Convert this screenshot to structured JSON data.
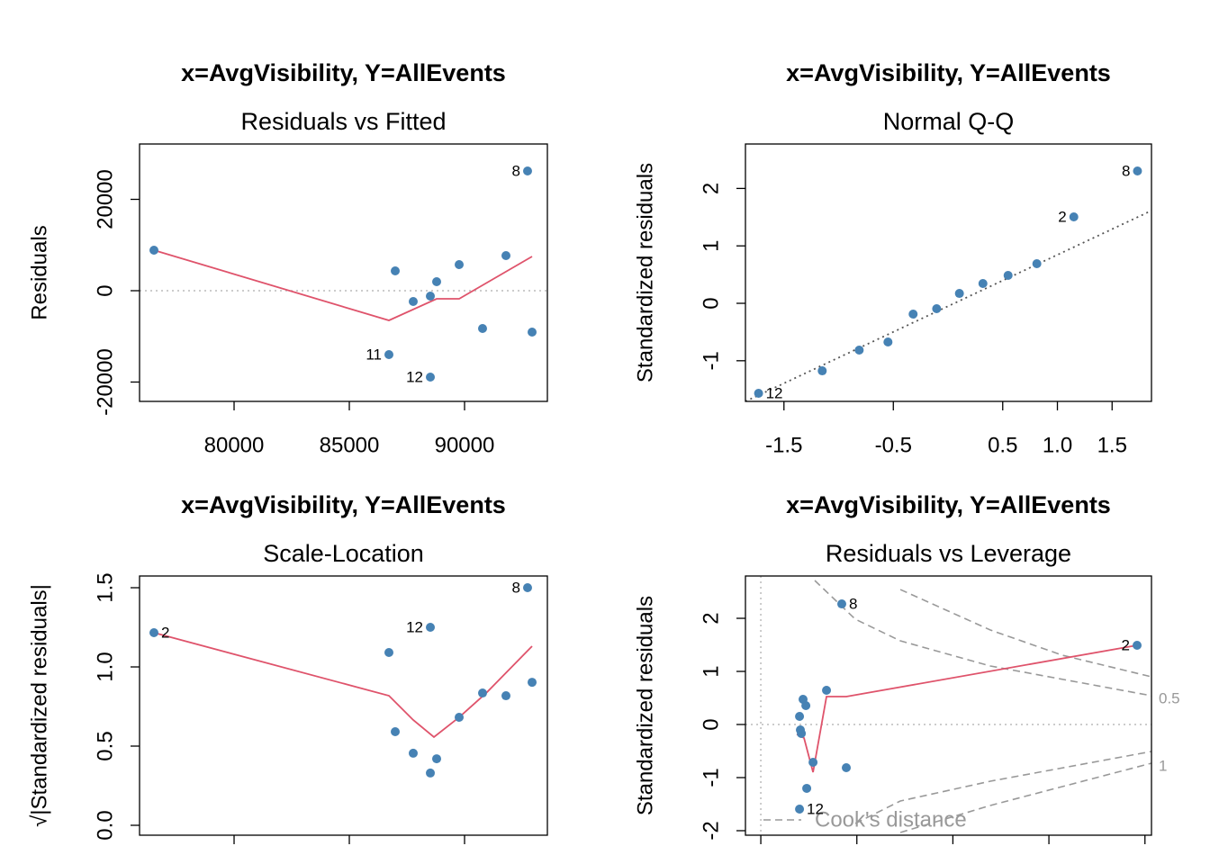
{
  "chart_data": [
    {
      "type": "scatter",
      "title": "x=AvgVisibility, Y=AllEvents",
      "subtitle": "Residuals vs Fitted",
      "ylabel": "Residuals",
      "color": "#4682B4",
      "x": [
        76523,
        86992,
        87773,
        88516,
        88789,
        89766,
        90781,
        91797,
        92734,
        92930,
        86719,
        88516
      ],
      "values": [
        8867,
        4335,
        -2365,
        -1182,
        1970,
        5714,
        -8276,
        7685,
        26207,
        -9064,
        -13990,
        -18916
      ],
      "point_labels": [
        null,
        null,
        null,
        null,
        null,
        null,
        null,
        null,
        "8",
        null,
        "11",
        "12"
      ],
      "smooth": {
        "color": "#DF536B",
        "x": [
          76523,
          86719,
          88789,
          89766,
          92930
        ],
        "y": [
          8867,
          -6502,
          -1773,
          -1773,
          7488
        ]
      },
      "hlines": [
        0
      ],
      "xlim": [
        75898,
        93594
      ],
      "ylim": [
        -24236,
        32118
      ],
      "xticks": [
        80000,
        85000,
        90000
      ],
      "yticks": [
        -20000,
        0,
        20000
      ]
    },
    {
      "type": "scatter",
      "title": "x=AvgVisibility, Y=AllEvents",
      "subtitle": "Normal Q-Q",
      "ylabel": "Standardized residuals",
      "color": "#4682B4",
      "x": [
        -1.732,
        -1.15,
        -0.812,
        -0.549,
        -0.319,
        -0.104,
        0.104,
        0.319,
        0.549,
        0.812,
        1.15,
        1.732
      ],
      "values": [
        -1.567,
        -1.176,
        -0.815,
        -0.674,
        -0.188,
        -0.094,
        0.172,
        0.345,
        0.486,
        0.69,
        1.505,
        2.304
      ],
      "point_labels": [
        "12",
        null,
        null,
        null,
        null,
        null,
        null,
        null,
        null,
        null,
        "2",
        "8"
      ],
      "qq_line": {
        "color": "#555555",
        "x": [
          -1.852,
          1.86
        ],
        "y": [
          -1.708,
          1.614
        ]
      },
      "xlim": [
        -1.852,
        1.86
      ],
      "ylim": [
        -1.708,
        2.774
      ],
      "xticks": [
        -1.5,
        -0.5,
        0.5,
        {
          "value": 1,
          "label": "1.0"
        },
        1.5
      ],
      "yticks": [
        -1,
        0,
        1,
        2
      ]
    },
    {
      "type": "scatter",
      "title": "x=AvgVisibility, Y=AllEvents",
      "subtitle": "Scale-Location",
      "ylabel": "√|Standardized residuals|",
      "color": "#4682B4",
      "x": [
        76523,
        86719,
        86992,
        87773,
        88516,
        88789,
        89766,
        90781,
        91797,
        92734,
        92930,
        88516
      ],
      "values": [
        1.216,
        1.091,
        0.591,
        0.455,
        0.33,
        0.42,
        0.682,
        0.835,
        0.818,
        1.5,
        0.903,
        1.25
      ],
      "point_labels": [
        "2",
        null,
        null,
        null,
        null,
        null,
        null,
        null,
        null,
        "8",
        null,
        "12"
      ],
      "smooth": {
        "color": "#DF536B",
        "x": [
          76523,
          86719,
          87773,
          88672,
          89766,
          90938,
          92930
        ],
        "y": [
          1.216,
          0.818,
          0.665,
          0.557,
          0.682,
          0.835,
          1.131
        ]
      },
      "xlim": [
        75898,
        93594
      ],
      "ylim": [
        -0.0625,
        1.574
      ],
      "xticks": [
        80000,
        85000,
        90000
      ],
      "xtick_labels_shown": false,
      "yticks": [
        {
          "value": 0,
          "label": "0.0"
        },
        0.5,
        {
          "value": 1,
          "label": "1.0"
        },
        1.5
      ]
    },
    {
      "type": "scatter",
      "title": "x=AvgVisibility, Y=AllEvents",
      "subtitle": "Residuals vs Leverage",
      "ylabel": "Standardized residuals",
      "color": "#4682B4",
      "x": [
        0.0403,
        0.0412,
        0.0422,
        0.044,
        0.0469,
        0.0478,
        0.0544,
        0.0684,
        0.089,
        0.0843,
        0.3918,
        0.0403
      ],
      "values": [
        0.153,
        -0.102,
        -0.169,
        0.475,
        0.356,
        -1.203,
        -0.712,
        0.644,
        -0.814,
        2.271,
        1.492,
        -1.593
      ],
      "point_labels": [
        null,
        null,
        null,
        null,
        null,
        null,
        null,
        null,
        null,
        "8",
        "2",
        "12"
      ],
      "smooth": {
        "color": "#DF536B",
        "x": [
          0.0375,
          0.045,
          0.0544,
          0.0684,
          0.089,
          0.3918
        ],
        "y": [
          -0.186,
          -0.254,
          -0.898,
          0.525,
          0.525,
          1.492
        ]
      },
      "hlines": [
        0
      ],
      "vlines": [
        0
      ],
      "cook": {
        "legend": "Cook's distance",
        "color": "#999999",
        "levels": [
          {
            "label": "0.5",
            "upper": {
              "x": [
                0.0562,
                0.0984,
                0.1453,
                0.239,
                0.4068
              ],
              "y": [
                2.712,
                1.983,
                1.576,
                1.102,
                0.542
              ]
            },
            "lower": {
              "x": [
                0.0984,
                0.1453,
                0.239,
                0.4068
              ],
              "y": [
                -1.864,
                -1.441,
                -1.068,
                -0.508
              ]
            }
          },
          {
            "label": "1",
            "upper": {
              "x": [
                0.1453,
                0.239,
                0.314,
                0.4068
              ],
              "y": [
                2.542,
                1.78,
                1.305,
                0.898
              ]
            },
            "lower": {
              "x": [
                0.1453,
                0.239,
                0.4068
              ],
              "y": [
                -2.034,
                -1.525,
                -0.729
              ]
            }
          }
        ]
      },
      "xlim": [
        -0.016,
        0.4068
      ],
      "ylim": [
        -2.085,
        2.797
      ],
      "xticks": [
        0,
        0.1,
        0.2,
        0.3,
        0.4
      ],
      "xtick_labels_shown": false,
      "yticks": [
        -2,
        -1,
        0,
        1,
        2
      ]
    }
  ]
}
